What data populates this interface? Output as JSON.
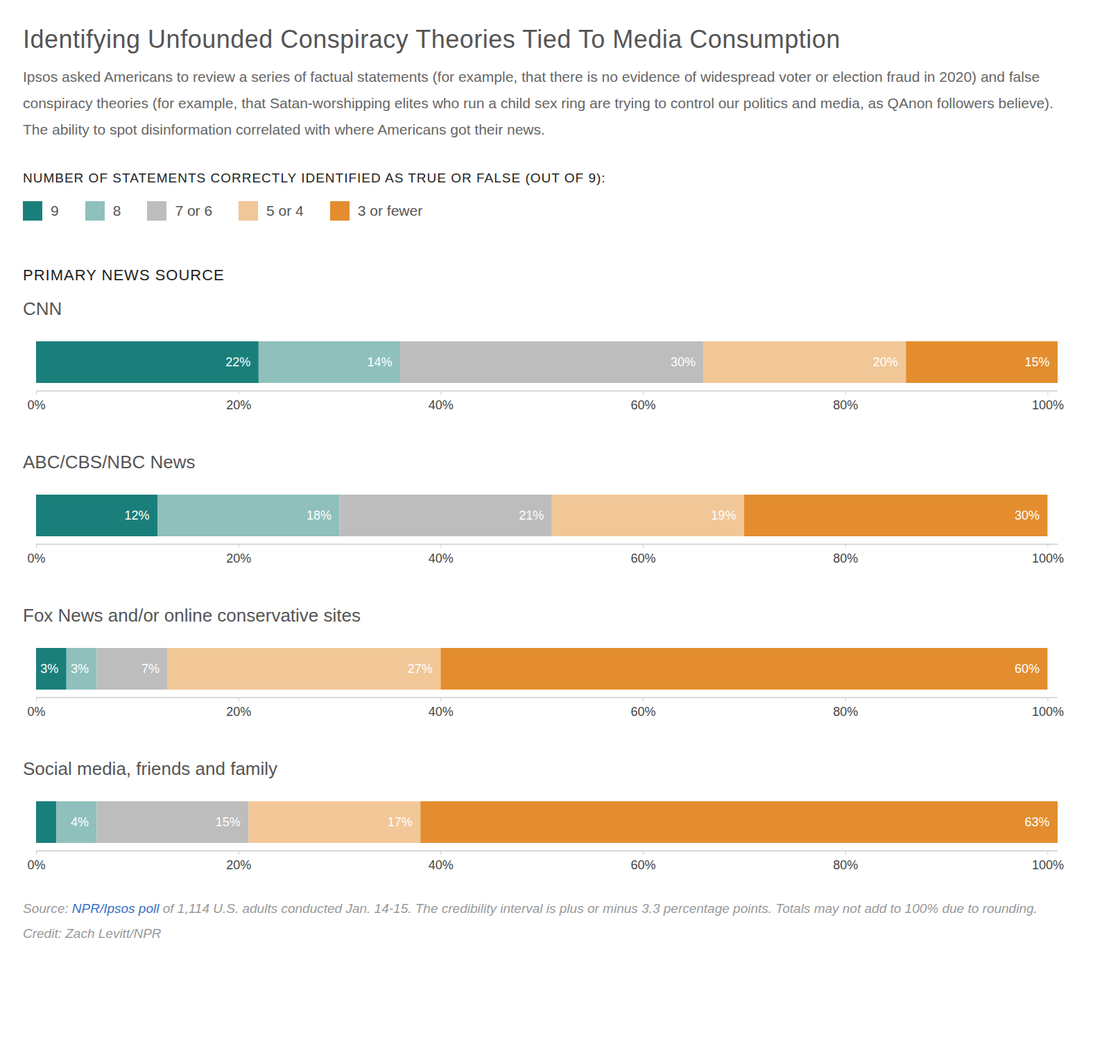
{
  "title": "Identifying Unfounded Conspiracy Theories Tied To Media Consumption",
  "subtitle": "Ipsos asked Americans to review a series of factual statements (for example, that there is no evidence of widespread voter or election fraud in 2020) and false conspiracy theories (for example, that Satan-worshipping elites who run a child sex ring are trying to control our politics and media, as QAnon followers believe). The ability to spot disinformation correlated with where Americans got their news.",
  "legend_title": "NUMBER OF STATEMENTS CORRECTLY IDENTIFIED AS TRUE OR FALSE (OUT OF 9):",
  "section_label": "PRIMARY NEWS SOURCE",
  "source": {
    "prefix": "Source:",
    "link": "NPR/Ipsos poll",
    "text": "of 1,114 U.S. adults conducted Jan. 14-15. The credibility interval is plus or minus 3.3 percentage points. Totals may not add to 100% due to rounding."
  },
  "credit": "Credit: Zach Levitt/NPR",
  "chart_data": [
    {
      "type": "bar",
      "title": "CNN",
      "orientation": "horizontal",
      "stacked": true,
      "data_labels": true,
      "categories": [
        null
      ],
      "xlim": [
        0,
        101
      ],
      "xticks": [
        {
          "value": 0,
          "label": "0%"
        },
        {
          "value": 20,
          "label": "20%"
        },
        {
          "value": 40,
          "label": "40%"
        },
        {
          "value": 60,
          "label": "60%"
        },
        {
          "value": 80,
          "label": "80%"
        },
        {
          "value": 100,
          "label": "100%"
        }
      ],
      "series": [
        {
          "name": "9",
          "color": "#1a7f7a",
          "values": [
            22
          ],
          "value_labels": [
            "22%"
          ]
        },
        {
          "name": "8",
          "color": "#8fc0bc",
          "values": [
            14
          ],
          "value_labels": [
            "14%"
          ]
        },
        {
          "name": "7 or 6",
          "color": "#bdbdbd",
          "values": [
            30
          ],
          "value_labels": [
            "30%"
          ]
        },
        {
          "name": "5 or 4",
          "color": "#f1c797",
          "values": [
            20
          ],
          "value_labels": [
            "20%"
          ]
        },
        {
          "name": "3 or fewer",
          "color": "#e38d2f",
          "values": [
            15
          ],
          "value_labels": [
            "15%"
          ]
        }
      ]
    },
    {
      "type": "bar",
      "title": "ABC/CBS/NBC News",
      "orientation": "horizontal",
      "stacked": true,
      "data_labels": true,
      "categories": [
        null
      ],
      "xlim": [
        0,
        101
      ],
      "xticks": [
        {
          "value": 0,
          "label": "0%"
        },
        {
          "value": 20,
          "label": "20%"
        },
        {
          "value": 40,
          "label": "40%"
        },
        {
          "value": 60,
          "label": "60%"
        },
        {
          "value": 80,
          "label": "80%"
        },
        {
          "value": 100,
          "label": "100%"
        }
      ],
      "series": [
        {
          "name": "9",
          "color": "#1a7f7a",
          "values": [
            12
          ],
          "value_labels": [
            "12%"
          ]
        },
        {
          "name": "8",
          "color": "#8fc0bc",
          "values": [
            18
          ],
          "value_labels": [
            "18%"
          ]
        },
        {
          "name": "7 or 6",
          "color": "#bdbdbd",
          "values": [
            21
          ],
          "value_labels": [
            "21%"
          ]
        },
        {
          "name": "5 or 4",
          "color": "#f1c797",
          "values": [
            19
          ],
          "value_labels": [
            "19%"
          ]
        },
        {
          "name": "3 or fewer",
          "color": "#e38d2f",
          "values": [
            30
          ],
          "value_labels": [
            "30%"
          ]
        }
      ]
    },
    {
      "type": "bar",
      "title": "Fox News and/or online conservative sites",
      "orientation": "horizontal",
      "stacked": true,
      "data_labels": true,
      "categories": [
        null
      ],
      "xlim": [
        0,
        101
      ],
      "xticks": [
        {
          "value": 0,
          "label": "0%"
        },
        {
          "value": 20,
          "label": "20%"
        },
        {
          "value": 40,
          "label": "40%"
        },
        {
          "value": 60,
          "label": "60%"
        },
        {
          "value": 80,
          "label": "80%"
        },
        {
          "value": 100,
          "label": "100%"
        }
      ],
      "series": [
        {
          "name": "9",
          "color": "#1a7f7a",
          "values": [
            3
          ],
          "value_labels": [
            "3%"
          ]
        },
        {
          "name": "8",
          "color": "#8fc0bc",
          "values": [
            3
          ],
          "value_labels": [
            "3%"
          ]
        },
        {
          "name": "7 or 6",
          "color": "#bdbdbd",
          "values": [
            7
          ],
          "value_labels": [
            "7%"
          ]
        },
        {
          "name": "5 or 4",
          "color": "#f1c797",
          "values": [
            27
          ],
          "value_labels": [
            "27%"
          ]
        },
        {
          "name": "3 or fewer",
          "color": "#e38d2f",
          "values": [
            60
          ],
          "value_labels": [
            "60%"
          ]
        }
      ]
    },
    {
      "type": "bar",
      "title": "Social media, friends and family",
      "orientation": "horizontal",
      "stacked": true,
      "data_labels": true,
      "categories": [
        null
      ],
      "xlim": [
        0,
        101
      ],
      "xticks": [
        {
          "value": 0,
          "label": "0%"
        },
        {
          "value": 20,
          "label": "20%"
        },
        {
          "value": 40,
          "label": "40%"
        },
        {
          "value": 60,
          "label": "60%"
        },
        {
          "value": 80,
          "label": "80%"
        },
        {
          "value": 100,
          "label": "100%"
        }
      ],
      "series": [
        {
          "name": "9",
          "color": "#1a7f7a",
          "values": [
            2
          ],
          "value_labels": [
            null
          ]
        },
        {
          "name": "8",
          "color": "#8fc0bc",
          "values": [
            4
          ],
          "value_labels": [
            "4%"
          ]
        },
        {
          "name": "7 or 6",
          "color": "#bdbdbd",
          "values": [
            15
          ],
          "value_labels": [
            "15%"
          ]
        },
        {
          "name": "5 or 4",
          "color": "#f1c797",
          "values": [
            17
          ],
          "value_labels": [
            "17%"
          ]
        },
        {
          "name": "3 or fewer",
          "color": "#e38d2f",
          "values": [
            63
          ],
          "value_labels": [
            "63%"
          ]
        }
      ]
    }
  ]
}
